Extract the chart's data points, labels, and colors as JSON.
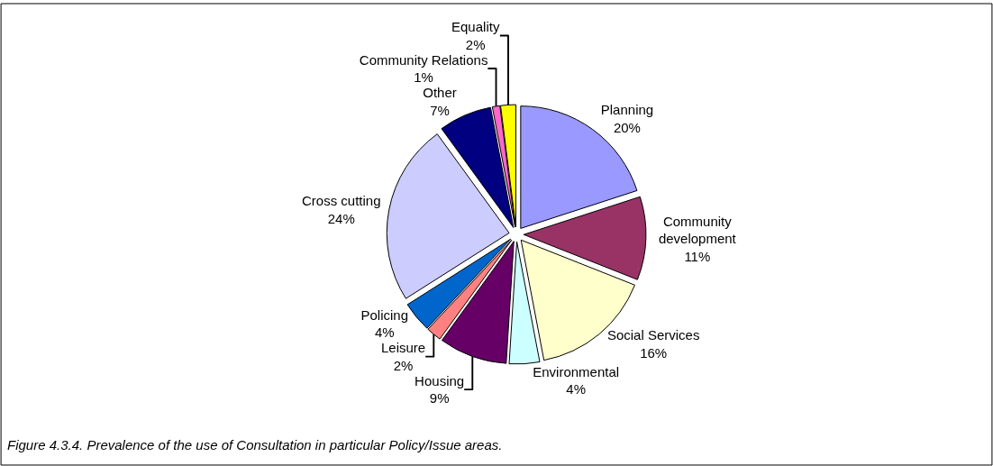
{
  "chart_data": {
    "type": "pie",
    "categories": [
      "Planning",
      "Community\ndevelopment",
      "Social Services",
      "Environmental",
      "Housing",
      "Leisure",
      "Policing",
      "Cross cutting",
      "Other",
      "Community Relations",
      "Equality"
    ],
    "values": [
      20,
      11,
      16,
      4,
      9,
      2,
      4,
      24,
      7,
      1,
      2
    ],
    "value_labels": [
      "20%",
      "11%",
      "16%",
      "4%",
      "9%",
      "2%",
      "4%",
      "24%",
      "7%",
      "1%",
      "2%"
    ],
    "colors": [
      "#9999ff",
      "#993366",
      "#ffffcc",
      "#ccffff",
      "#660066",
      "#ff8080",
      "#0066cc",
      "#ccccff",
      "#000080",
      "#ff66cc",
      "#ffff00"
    ],
    "annotations": [
      "Figure 4.3.4. Prevalence of the use of Consultation in particular Policy/Issue areas."
    ],
    "legend": false
  }
}
